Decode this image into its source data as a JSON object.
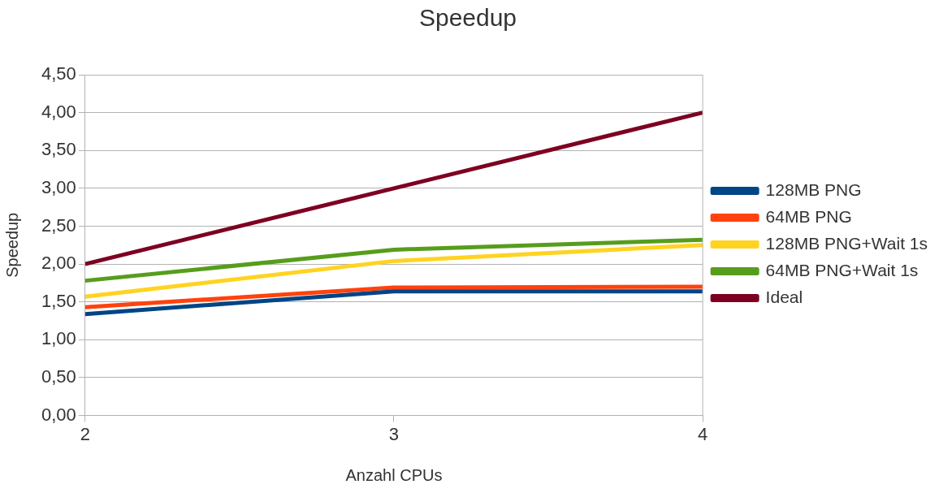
{
  "chart_data": {
    "type": "line",
    "title": "Speedup",
    "xlabel": "Anzahl CPUs",
    "ylabel": "Speedup",
    "x": [
      2,
      3,
      4
    ],
    "xlim": [
      2,
      4
    ],
    "xticks": [
      2,
      3,
      4
    ],
    "ylim": [
      0,
      4.5
    ],
    "yticks": [
      {
        "value": 0,
        "label": "0,00"
      },
      {
        "value": 0.5,
        "label": "0,50"
      },
      {
        "value": 1,
        "label": "1,00"
      },
      {
        "value": 1.5,
        "label": "1,50"
      },
      {
        "value": 2,
        "label": "2,00"
      },
      {
        "value": 2.5,
        "label": "2,50"
      },
      {
        "value": 3,
        "label": "3,00"
      },
      {
        "value": 3.5,
        "label": "3,50"
      },
      {
        "value": 4,
        "label": "4,00"
      },
      {
        "value": 4.5,
        "label": "4,50"
      }
    ],
    "series": [
      {
        "name": "128MB PNG",
        "color": "#004586",
        "values": [
          1.34,
          1.64,
          1.64
        ]
      },
      {
        "name": "64MB PNG",
        "color": "#ff420e",
        "values": [
          1.43,
          1.69,
          1.7
        ]
      },
      {
        "name": "128MB PNG+Wait 1s",
        "color": "#ffd320",
        "values": [
          1.57,
          2.04,
          2.25
        ]
      },
      {
        "name": "64MB PNG+Wait 1s",
        "color": "#579d1c",
        "values": [
          1.78,
          2.19,
          2.32
        ]
      },
      {
        "name": "Ideal",
        "color": "#7e0021",
        "values": [
          2,
          3,
          4
        ]
      }
    ],
    "grid": "y",
    "legend": "right",
    "marker": "none",
    "line_style": "solid"
  }
}
